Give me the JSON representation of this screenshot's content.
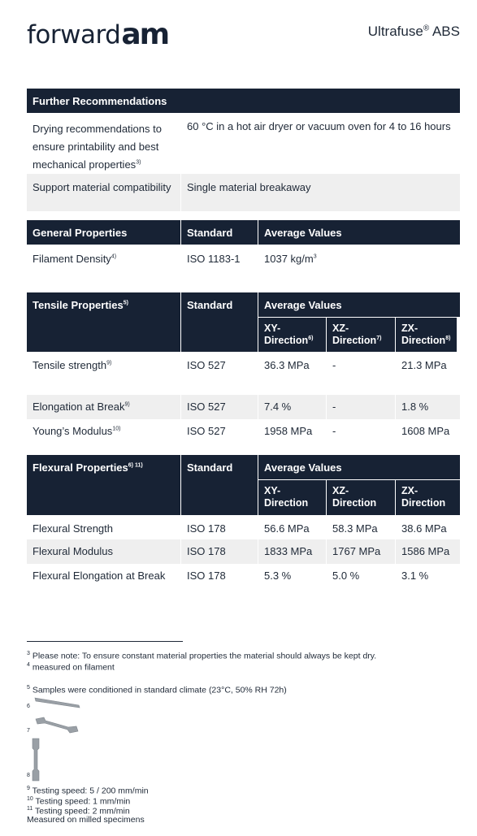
{
  "header": {
    "logo_text": "forward",
    "logo_am": "am",
    "product_name": "Ultrafuse",
    "product_reg": "®",
    "product_suffix": " ABS"
  },
  "further": {
    "title": "Further Recommendations",
    "rows": [
      {
        "label": "Drying recommendations to ensure printability and best mechanical properties",
        "sup": "3)",
        "value": "60 °C in a hot air dryer or vacuum oven for 4 to 16 hours"
      },
      {
        "label": "Support material compatibility",
        "value": "Single material breakaway"
      }
    ]
  },
  "general": {
    "headers": [
      "General Properties",
      "Standard",
      "Average Values"
    ],
    "row": {
      "label": "Filament Density",
      "sup": "4)",
      "standard": "ISO 1183-1",
      "value": "1037 kg/m",
      "unit_sup": "3"
    }
  },
  "tensile": {
    "headers": [
      "Tensile Properties",
      "Standard",
      "Average Values"
    ],
    "title_sup": "5)",
    "subheaders": [
      {
        "label": "XY-",
        "label2": "Direction",
        "sup": "6)"
      },
      {
        "label": "XZ-",
        "label2": "Direction",
        "sup": "7)"
      },
      {
        "label": "ZX-",
        "label2": "Direction",
        "sup": "8)"
      }
    ],
    "rows": [
      {
        "label": "Tensile strength",
        "sup": "9)",
        "standard": "ISO 527",
        "xy": "36.3 MPa",
        "xz": "-",
        "zx": "21.3 MPa"
      },
      {
        "label": "Elongation at Break",
        "sup": "9)",
        "standard": "ISO 527",
        "xy": "7.4 %",
        "xz": "-",
        "zx": "1.8 %"
      },
      {
        "label": "Young’s Modulus",
        "sup": "10)",
        "standard": "ISO 527",
        "xy": "1958 MPa",
        "xz": "-",
        "zx": "1608 MPa"
      }
    ]
  },
  "flexural": {
    "headers": [
      "Flexural Properties",
      "Standard",
      "Average Values"
    ],
    "title_sup": "6) 11)",
    "subheaders": [
      {
        "label": "XY-",
        "label2": "Direction"
      },
      {
        "label": "XZ-",
        "label2": "Direction"
      },
      {
        "label": "ZX-",
        "label2": "Direction"
      }
    ],
    "rows": [
      {
        "label": "Flexural Strength",
        "standard": "ISO 178",
        "xy": "56.6 MPa",
        "xz": "58.3 MPa",
        "zx": "38.6 MPa"
      },
      {
        "label": "Flexural Modulus",
        "standard": "ISO 178",
        "xy": "1833 MPa",
        "xz": "1767 MPa",
        "zx": "1586 MPa"
      },
      {
        "label": "Flexural Elongation at Break",
        "standard": "ISO 178",
        "xy": "5.3 %",
        "xz": "5.0 %",
        "zx": "3.1 %"
      }
    ]
  },
  "footnotes": {
    "n3": {
      "num": "3",
      "text": " Please note: To ensure constant material properties the material should always be kept dry."
    },
    "n4": {
      "num": "4",
      "text": " measured on filament"
    },
    "n5": {
      "num": "5",
      "text": " Samples were conditioned in standard climate (23°C, 50% RH 72h)"
    },
    "n6": {
      "num": "6"
    },
    "n7": {
      "num": "7"
    },
    "n8": {
      "num": "8"
    },
    "n9": {
      "num": "9",
      "text": " Testing speed: 5 / 200 mm/min"
    },
    "n10": {
      "num": "10",
      "text": " Testing speed: 1 mm/min"
    },
    "n11": {
      "num": "11",
      "text": " Testing speed: 2 mm/min"
    },
    "milled": "Measured on milled specimens"
  }
}
